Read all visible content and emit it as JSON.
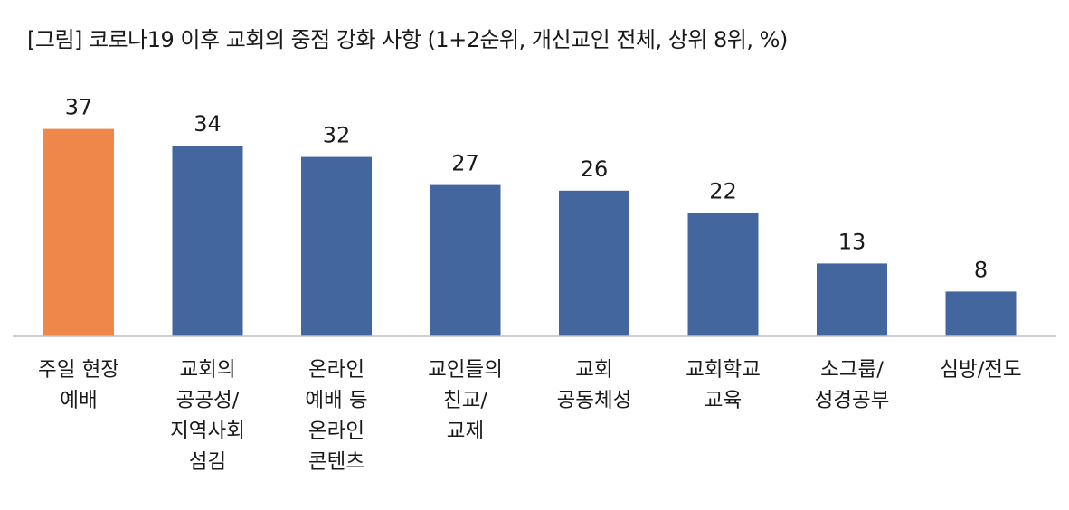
{
  "chart_data": {
    "type": "bar",
    "title": "[그림] 코로나19 이후 교회의 중점 강화 사항 (1+2순위, 개신교인 전체, 상위 8위, %)",
    "xlabel": "",
    "ylabel": "",
    "ylim": [
      0,
      40
    ],
    "grid": false,
    "legend": "none",
    "categories": [
      [
        "주일 현장",
        "예배"
      ],
      [
        "교회의",
        "공공성/",
        "지역사회",
        "섬김"
      ],
      [
        "온라인",
        "예배 등",
        "온라인",
        "콘텐츠"
      ],
      [
        "교인들의",
        "친교/",
        "교제"
      ],
      [
        "교회",
        "공동체성"
      ],
      [
        "교회학교",
        "교육"
      ],
      [
        "소그룹/",
        "성경공부"
      ],
      [
        "심방/전도"
      ]
    ],
    "values": [
      37,
      34,
      32,
      27,
      26,
      22,
      13,
      8
    ],
    "colors": {
      "highlight": "#F0874A",
      "default": "#43669F",
      "baseline": "#BFBFBF"
    },
    "highlight_index": 0
  }
}
